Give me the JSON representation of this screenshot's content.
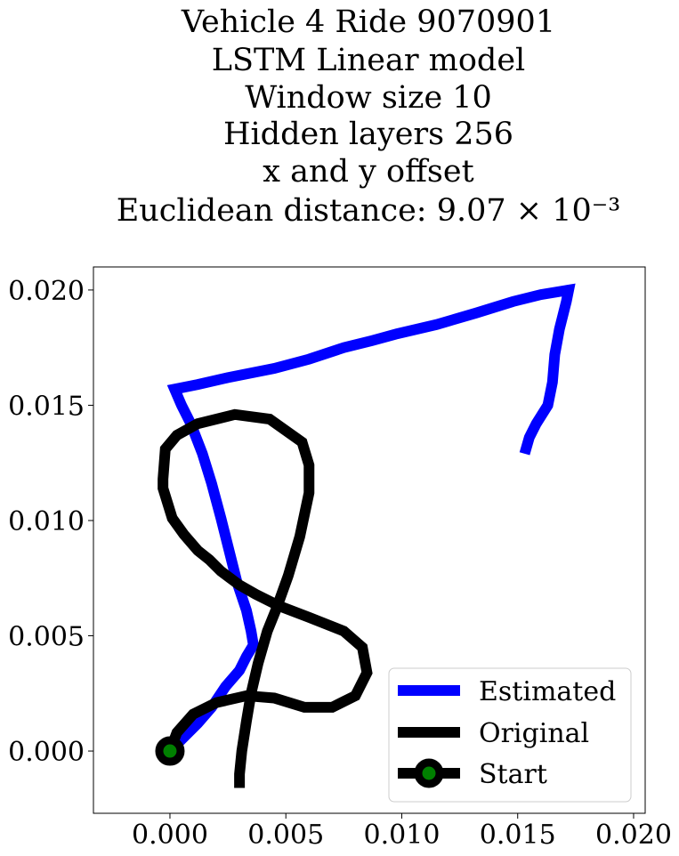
{
  "chart_data": {
    "type": "line",
    "title_lines": [
      "Vehicle 4 Ride 9070901",
      "LSTM Linear model",
      "Window size 10",
      "Hidden layers 256",
      "x and y offset",
      "Euclidean distance: 9.07 × 10⁻³"
    ],
    "xlabel": "",
    "ylabel": "",
    "xlim": [
      -0.0033,
      0.0205
    ],
    "ylim": [
      -0.0027,
      0.021
    ],
    "xticks": [
      0.0,
      0.005,
      0.01,
      0.015,
      0.02
    ],
    "xtick_labels": [
      "0.000",
      "0.005",
      "0.010",
      "0.015",
      "0.020"
    ],
    "yticks": [
      0.0,
      0.005,
      0.01,
      0.015,
      0.02
    ],
    "ytick_labels": [
      "0.000",
      "0.005",
      "0.010",
      "0.015",
      "0.020"
    ],
    "grid": false,
    "legend_position": "lower-right",
    "series": [
      {
        "name": "Estimated",
        "color": "#0000ff",
        "points": [
          [
            0.0,
            0.0
          ],
          [
            0.0005,
            0.0005
          ],
          [
            0.0012,
            0.0012
          ],
          [
            0.0018,
            0.0019
          ],
          [
            0.0024,
            0.0028
          ],
          [
            0.003,
            0.0035
          ],
          [
            0.0033,
            0.0041
          ],
          [
            0.0036,
            0.0046
          ],
          [
            0.0035,
            0.0052
          ],
          [
            0.0033,
            0.0061
          ],
          [
            0.0029,
            0.0073
          ],
          [
            0.0026,
            0.0085
          ],
          [
            0.0022,
            0.0101
          ],
          [
            0.0018,
            0.0116
          ],
          [
            0.0014,
            0.0129
          ],
          [
            0.0009,
            0.0142
          ],
          [
            0.0005,
            0.015
          ],
          [
            0.0002,
            0.0157
          ],
          [
            0.0012,
            0.0159
          ],
          [
            0.0025,
            0.0162
          ],
          [
            0.0045,
            0.0166
          ],
          [
            0.006,
            0.017
          ],
          [
            0.0075,
            0.0175
          ],
          [
            0.0087,
            0.0178
          ],
          [
            0.0098,
            0.0181
          ],
          [
            0.0115,
            0.0185
          ],
          [
            0.0132,
            0.019
          ],
          [
            0.0148,
            0.0195
          ],
          [
            0.016,
            0.0198
          ],
          [
            0.0172,
            0.02
          ],
          [
            0.0171,
            0.0195
          ],
          [
            0.0168,
            0.0183
          ],
          [
            0.0166,
            0.0172
          ],
          [
            0.0165,
            0.016
          ],
          [
            0.0163,
            0.015
          ],
          [
            0.0158,
            0.0142
          ],
          [
            0.0155,
            0.0136
          ],
          [
            0.0153,
            0.0129
          ]
        ]
      },
      {
        "name": "Original",
        "color": "#000000",
        "points": [
          [
            0.0,
            0.0
          ],
          [
            0.0003,
            0.0008
          ],
          [
            0.001,
            0.0016
          ],
          [
            0.002,
            0.0021
          ],
          [
            0.0033,
            0.0024
          ],
          [
            0.0045,
            0.0023
          ],
          [
            0.0058,
            0.0019
          ],
          [
            0.007,
            0.0019
          ],
          [
            0.008,
            0.0024
          ],
          [
            0.0085,
            0.0034
          ],
          [
            0.0083,
            0.0045
          ],
          [
            0.0075,
            0.0052
          ],
          [
            0.006,
            0.0058
          ],
          [
            0.0047,
            0.0063
          ],
          [
            0.0037,
            0.0068
          ],
          [
            0.003,
            0.0072
          ],
          [
            0.0022,
            0.0078
          ],
          [
            0.0017,
            0.0083
          ],
          [
            0.0012,
            0.0087
          ],
          [
            0.0006,
            0.0094
          ],
          [
            0.0001,
            0.0101
          ],
          [
            -0.0003,
            0.0114
          ],
          [
            -0.0003,
            0.0118
          ],
          [
            -0.0002,
            0.0131
          ],
          [
            0.0003,
            0.0137
          ],
          [
            0.0012,
            0.0142
          ],
          [
            0.0028,
            0.0146
          ],
          [
            0.0043,
            0.0144
          ],
          [
            0.0057,
            0.0134
          ],
          [
            0.006,
            0.0124
          ],
          [
            0.006,
            0.0112
          ],
          [
            0.0056,
            0.0093
          ],
          [
            0.0051,
            0.0076
          ],
          [
            0.0046,
            0.0062
          ],
          [
            0.0042,
            0.0052
          ],
          [
            0.0038,
            0.0038
          ],
          [
            0.0035,
            0.0025
          ],
          [
            0.0033,
            0.0013
          ],
          [
            0.0031,
            0.0
          ],
          [
            0.003,
            -0.001
          ],
          [
            0.003,
            -0.0016
          ]
        ]
      },
      {
        "name": "Start",
        "color": "#000000",
        "marker_color": "#008000",
        "points": [
          [
            0.0,
            0.0
          ]
        ]
      }
    ]
  }
}
